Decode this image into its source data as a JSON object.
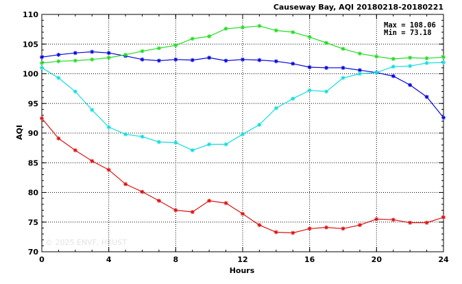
{
  "chart_data": {
    "type": "line",
    "title": "Causeway Bay, AQI 20180218-20180221",
    "xlabel": "Hours",
    "ylabel": "AQI",
    "xlim": [
      0,
      24
    ],
    "ylim": [
      70,
      110
    ],
    "xticks": [
      "0",
      "4",
      "8",
      "12",
      "16",
      "20",
      "24"
    ],
    "yticks": [
      "70",
      "75",
      "80",
      "85",
      "90",
      "95",
      "100",
      "105",
      "110"
    ],
    "grid": true,
    "annotations": [
      "Max = 108.06",
      "Min =  73.18"
    ],
    "watermark": "© 2025  ENVF, HKUST",
    "x": [
      0,
      1,
      2,
      3,
      4,
      5,
      6,
      7,
      8,
      9,
      10,
      11,
      12,
      13,
      14,
      15,
      16,
      17,
      18,
      19,
      20,
      21,
      22,
      23,
      24
    ],
    "series": [
      {
        "color": "#0000dd",
        "values": [
          102.8,
          103.2,
          103.5,
          103.7,
          103.5,
          103.0,
          102.4,
          102.2,
          102.4,
          102.3,
          102.7,
          102.2,
          102.4,
          102.3,
          102.1,
          101.7,
          101.1,
          101.0,
          101.0,
          100.6,
          100.2,
          99.6,
          98.1,
          96.1,
          92.6
        ]
      },
      {
        "color": "#22dd22",
        "values": [
          101.8,
          102.1,
          102.2,
          102.4,
          102.7,
          103.2,
          103.8,
          104.3,
          104.8,
          105.9,
          106.3,
          107.6,
          107.8,
          108.06,
          107.3,
          107.0,
          106.2,
          105.2,
          104.2,
          103.4,
          102.9,
          102.5,
          102.7,
          102.6,
          102.8
        ]
      },
      {
        "color": "#11dddd",
        "values": [
          101.0,
          99.3,
          97.0,
          93.9,
          91.0,
          89.8,
          89.4,
          88.5,
          88.4,
          87.1,
          88.1,
          88.1,
          89.8,
          91.4,
          94.2,
          95.8,
          97.2,
          97.0,
          99.3,
          100.0,
          100.2,
          101.2,
          101.3,
          101.8,
          101.9
        ]
      },
      {
        "color": "#dd1111",
        "values": [
          92.5,
          89.1,
          87.1,
          85.3,
          83.8,
          81.4,
          80.1,
          78.6,
          77.0,
          76.7,
          78.6,
          78.2,
          76.4,
          74.5,
          73.3,
          73.18,
          73.9,
          74.1,
          73.9,
          74.5,
          75.5,
          75.4,
          74.9,
          74.9,
          75.8
        ]
      }
    ]
  }
}
